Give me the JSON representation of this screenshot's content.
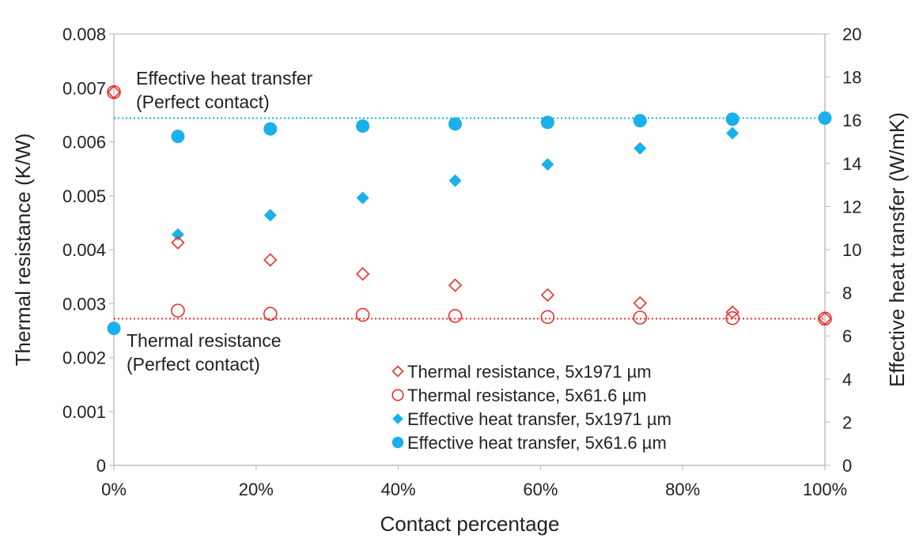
{
  "chart_data": {
    "type": "scatter",
    "xlabel": "Contact percentage",
    "ylabel": "Thermal resistance (K/W)",
    "y2label": "Effective heat transfer (W/mK)",
    "x_ticks": [
      "0%",
      "20%",
      "40%",
      "60%",
      "80%",
      "100%"
    ],
    "x_tick_values": [
      0,
      20,
      40,
      60,
      80,
      100
    ],
    "y_ticks": [
      "0",
      "0.001",
      "0.002",
      "0.003",
      "0.004",
      "0.005",
      "0.006",
      "0.007",
      "0.008"
    ],
    "y_tick_values": [
      0,
      0.001,
      0.002,
      0.003,
      0.004,
      0.005,
      0.006,
      0.007,
      0.008
    ],
    "y2_ticks": [
      "0",
      "2",
      "4",
      "6",
      "8",
      "10",
      "12",
      "14",
      "16",
      "18",
      "20"
    ],
    "y2_tick_values": [
      0,
      2,
      4,
      6,
      8,
      10,
      12,
      14,
      16,
      18,
      20
    ],
    "xlim": [
      0,
      100
    ],
    "ylim": [
      0,
      0.008
    ],
    "y2lim": [
      0,
      20
    ],
    "colors": {
      "red": "#e8302a",
      "blue": "#1ab0e8"
    },
    "series": [
      {
        "name": "Thermal resistance, 5x1971 µm",
        "axis": "left",
        "marker": "diamond-open",
        "color": "#e8302a",
        "x": [
          0,
          9,
          22,
          35,
          48,
          61,
          74,
          87,
          100
        ],
        "y": [
          0.00692,
          0.00413,
          0.00381,
          0.00355,
          0.00334,
          0.00316,
          0.00301,
          0.00284,
          0.00272
        ]
      },
      {
        "name": "Thermal resistance, 5x61.6 µm",
        "axis": "left",
        "marker": "circle-open",
        "color": "#e8302a",
        "x": [
          0,
          9,
          22,
          35,
          48,
          61,
          74,
          87,
          100
        ],
        "y": [
          0.00692,
          0.00287,
          0.00281,
          0.00279,
          0.00277,
          0.00275,
          0.00274,
          0.00273,
          0.00272
        ]
      },
      {
        "name": "Effective heat transfer, 5x1971 µm",
        "axis": "right",
        "marker": "diamond-filled",
        "color": "#1ab0e8",
        "x": [
          0,
          9,
          22,
          35,
          48,
          61,
          74,
          87,
          100
        ],
        "y": [
          6.35,
          10.7,
          11.6,
          12.4,
          13.2,
          13.95,
          14.7,
          15.4,
          16.1
        ]
      },
      {
        "name": "Effective heat transfer, 5x61.6 µm",
        "axis": "right",
        "marker": "circle-filled",
        "color": "#1ab0e8",
        "x": [
          0,
          9,
          22,
          35,
          48,
          61,
          74,
          87,
          100
        ],
        "y": [
          6.35,
          15.25,
          15.6,
          15.73,
          15.83,
          15.9,
          15.98,
          16.05,
          16.1
        ]
      }
    ],
    "reference_lines": [
      {
        "label": "Effective heat transfer (Perfect contact)",
        "axis": "right",
        "value": 16.1,
        "color": "#1ab0e8"
      },
      {
        "label": "Thermal resistance (Perfect contact)",
        "axis": "left",
        "value": 0.00272,
        "color": "#e8302a"
      }
    ],
    "annotations": [
      {
        "lines": [
          "Effective heat transfer",
          "(Perfect contact)"
        ]
      },
      {
        "lines": [
          "Thermal resistance",
          "(Perfect contact)"
        ]
      }
    ],
    "legend_position": "bottom-right"
  }
}
